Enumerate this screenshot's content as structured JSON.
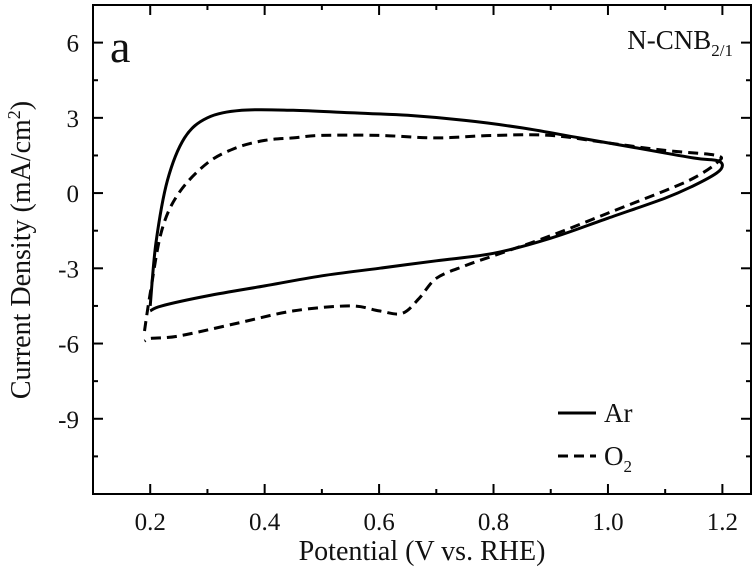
{
  "chart_data": {
    "type": "line",
    "panel_label": "a",
    "sample_label": {
      "main": "N-CNB",
      "sub": "2/1"
    },
    "xlabel": "Potential (V vs. RHE)",
    "ylabel": {
      "main": "Current Density (mA/cm",
      "sup": "2",
      "end": ")"
    },
    "xlim": [
      0.1,
      1.25
    ],
    "ylim": [
      -12,
      7.5
    ],
    "x_ticks": [
      0.2,
      0.4,
      0.6,
      0.8,
      1.0,
      1.2
    ],
    "x_tick_labels": [
      "0.2",
      "0.4",
      "0.6",
      "0.8",
      "1.0",
      "1.2"
    ],
    "y_ticks": [
      6,
      3,
      0,
      -3,
      -6,
      -9
    ],
    "y_tick_labels": [
      "6",
      "3",
      "0",
      "-3",
      "-6",
      "-9"
    ],
    "grid": false,
    "legend_position": "bottom-right",
    "series": [
      {
        "name": "Ar",
        "style": "solid",
        "color": "#000000",
        "x": [
          0.2,
          0.21,
          0.23,
          0.26,
          0.3,
          0.36,
          0.45,
          0.55,
          0.65,
          0.75,
          0.85,
          0.95,
          1.05,
          1.15,
          1.19,
          1.2,
          1.19,
          1.15,
          1.1,
          1.0,
          0.9,
          0.8,
          0.7,
          0.6,
          0.5,
          0.4,
          0.3,
          0.22,
          0.2
        ],
        "y": [
          -4.5,
          -2.0,
          0.5,
          2.2,
          3.0,
          3.3,
          3.3,
          3.2,
          3.1,
          2.9,
          2.6,
          2.2,
          1.8,
          1.4,
          1.3,
          1.1,
          0.8,
          0.3,
          -0.2,
          -1.0,
          -1.8,
          -2.4,
          -2.7,
          -3.0,
          -3.3,
          -3.7,
          -4.1,
          -4.5,
          -4.7
        ]
      },
      {
        "name": "O",
        "name_sub": "2",
        "style": "dashed",
        "color": "#000000",
        "x": [
          0.19,
          0.2,
          0.22,
          0.25,
          0.3,
          0.35,
          0.4,
          0.45,
          0.5,
          0.6,
          0.7,
          0.8,
          0.9,
          1.0,
          1.1,
          1.19,
          1.19,
          1.15,
          1.1,
          1.0,
          0.9,
          0.8,
          0.75,
          0.7,
          0.67,
          0.64,
          0.6,
          0.55,
          0.45,
          0.35,
          0.25,
          0.2,
          0.19
        ],
        "y": [
          -5.5,
          -4.0,
          -1.5,
          0.0,
          1.2,
          1.8,
          2.1,
          2.2,
          2.3,
          2.3,
          2.2,
          2.3,
          2.3,
          2.0,
          1.7,
          1.5,
          1.2,
          0.6,
          0.1,
          -0.8,
          -1.7,
          -2.5,
          -2.9,
          -3.4,
          -4.2,
          -4.8,
          -4.7,
          -4.5,
          -4.7,
          -5.2,
          -5.7,
          -5.8,
          -5.9
        ]
      }
    ]
  }
}
